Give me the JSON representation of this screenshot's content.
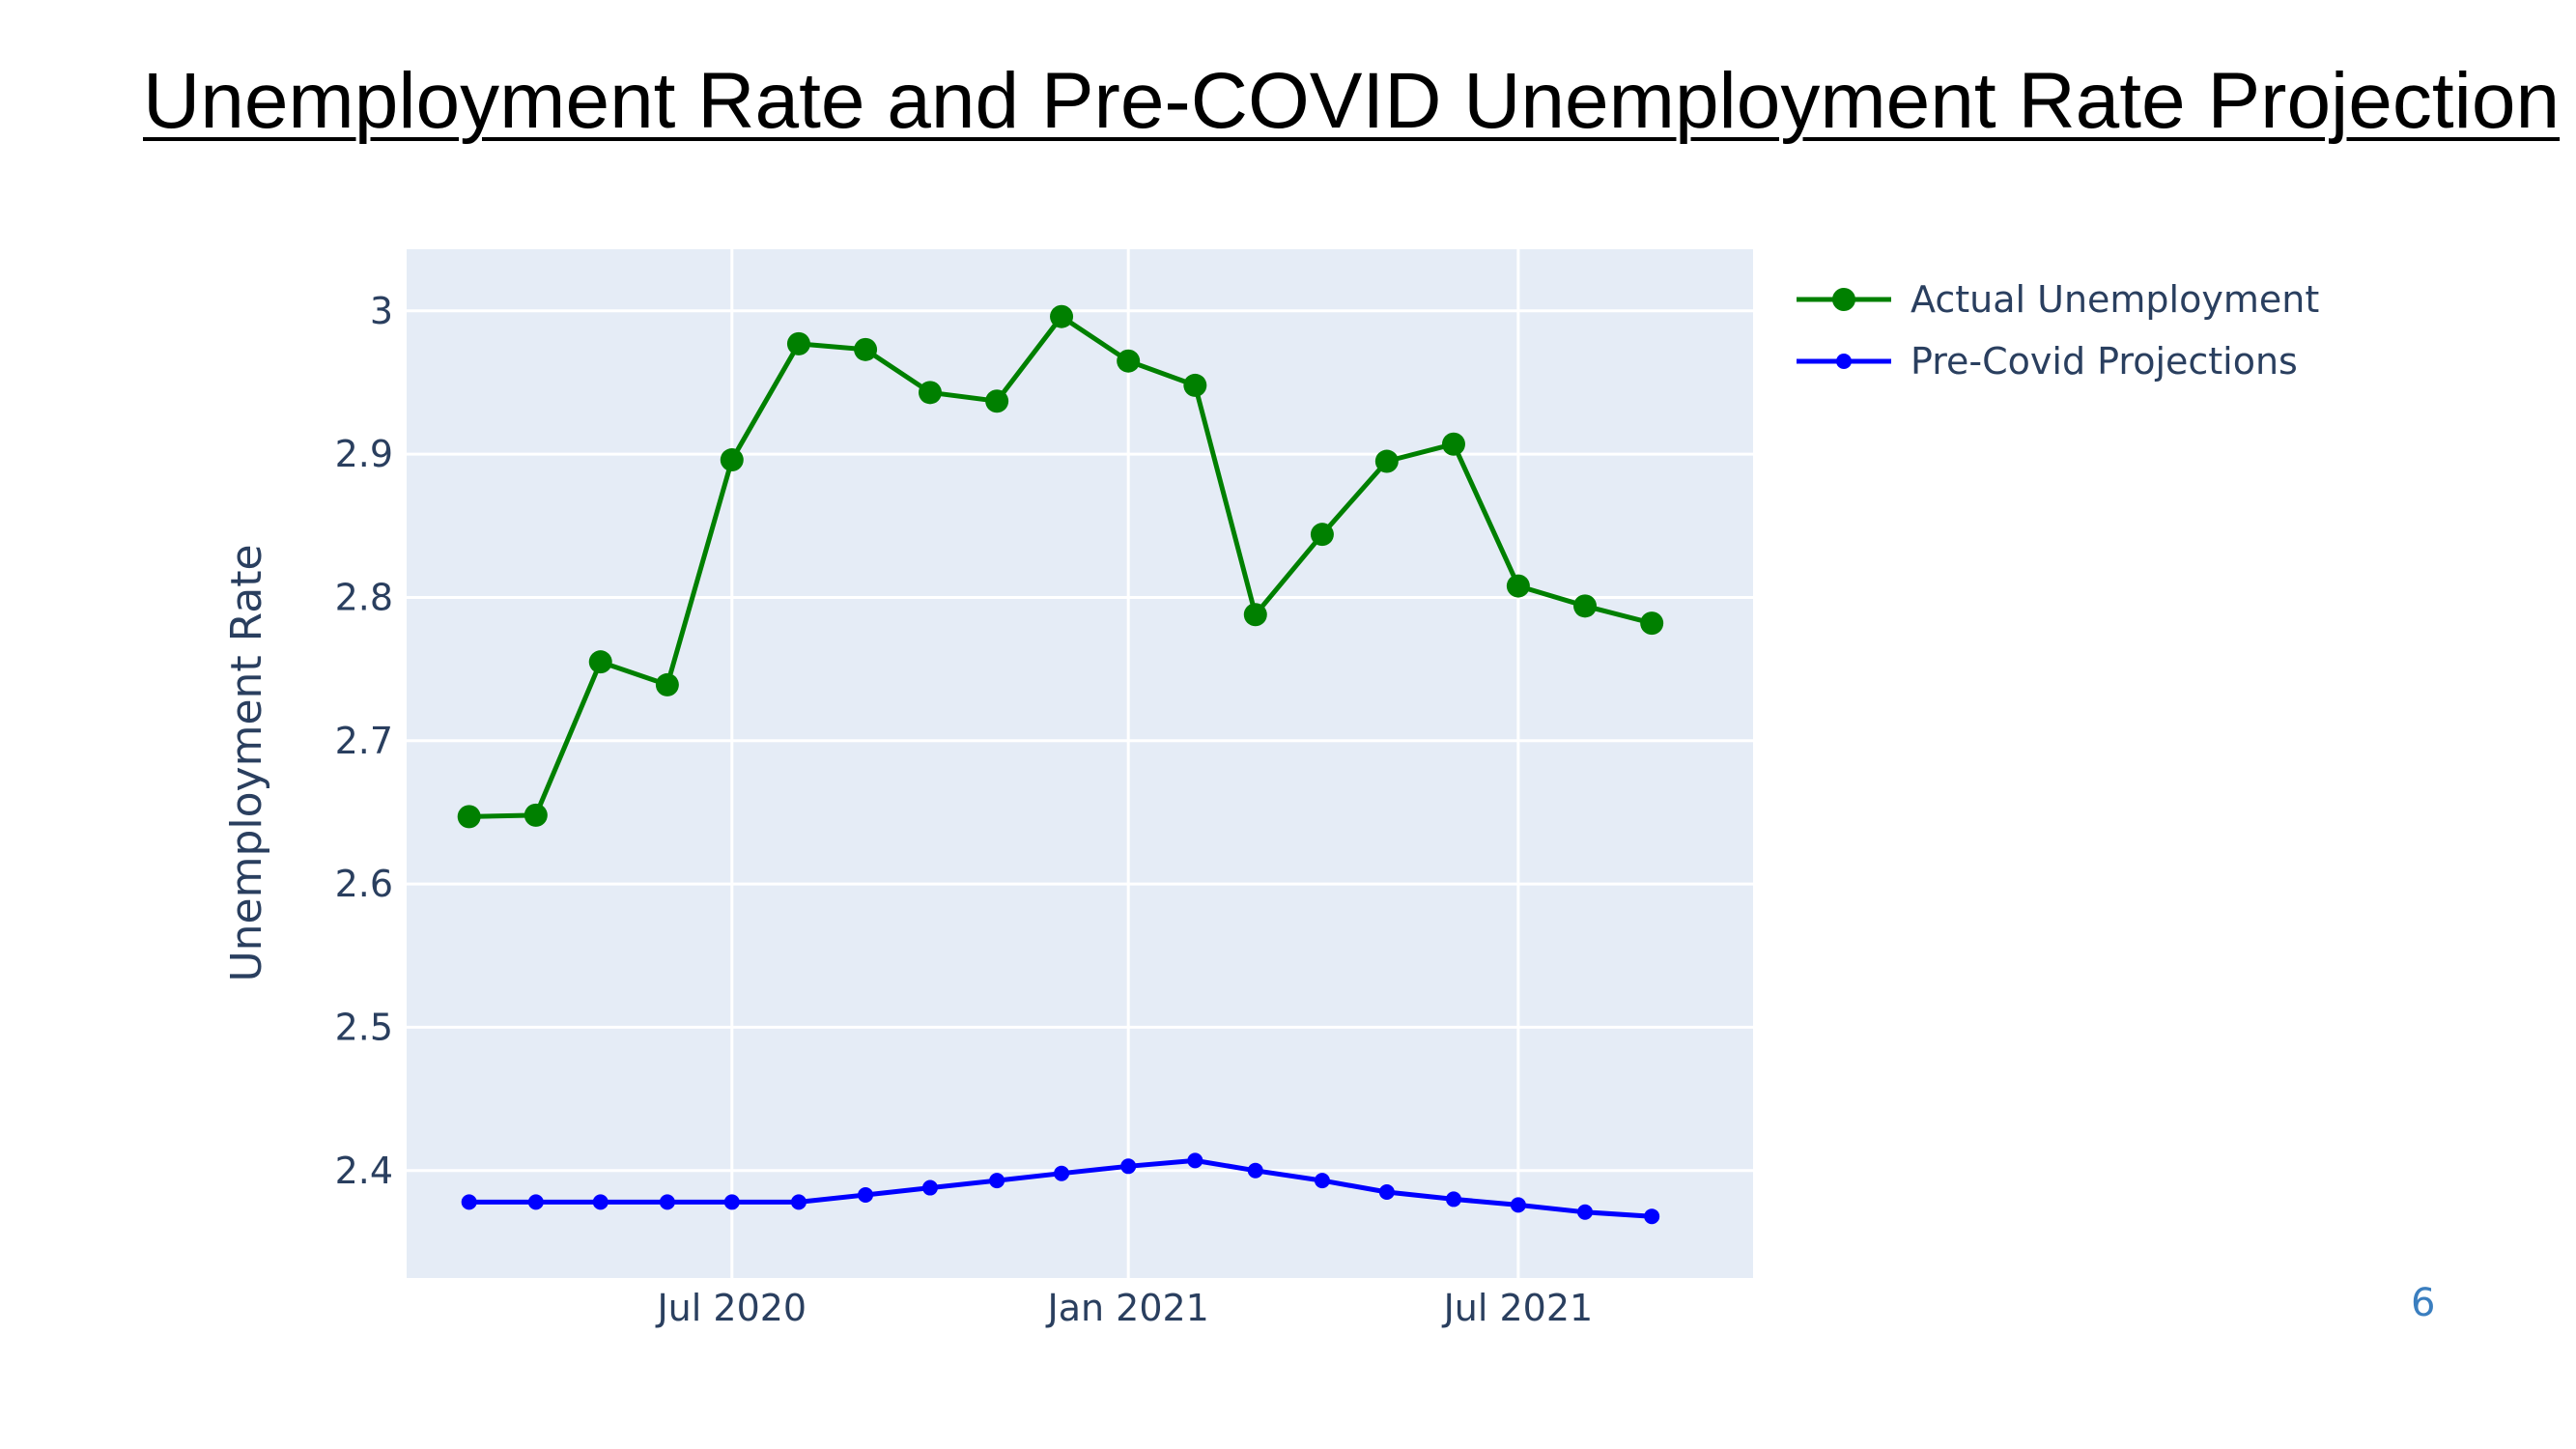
{
  "title": "Unemployment Rate and Pre-COVID Unemployment Rate Projection",
  "page_number": "6",
  "chart_data": {
    "type": "line",
    "title": "",
    "xlabel": "",
    "ylabel": "Unemployment Rate",
    "x": [
      "2020-03",
      "2020-04",
      "2020-05",
      "2020-06",
      "2020-07",
      "2020-08",
      "2020-09",
      "2020-10",
      "2020-11",
      "2020-12",
      "2021-01",
      "2021-02",
      "2021-03",
      "2021-04",
      "2021-05",
      "2021-06",
      "2021-07",
      "2021-08",
      "2021-09"
    ],
    "x_tick_labels": [
      {
        "value": "2020-07",
        "label": "Jul 2020"
      },
      {
        "value": "2021-01",
        "label": "Jan 2021"
      },
      {
        "value": "2021-07",
        "label": "Jul 2021"
      }
    ],
    "y_ticks": [
      2.4,
      2.5,
      2.6,
      2.7,
      2.8,
      2.9,
      3
    ],
    "y_tick_labels": [
      "2.4",
      "2.5",
      "2.6",
      "2.7",
      "2.8",
      "2.9",
      "3"
    ],
    "xlim": [
      "2020-02-01",
      "2021-10-18"
    ],
    "ylim": [
      2.325,
      3.043
    ],
    "grid": true,
    "legend_position": "right",
    "plot_background": "#e5ecf6",
    "series": [
      {
        "name": "Actual Unemployment",
        "color": "#008000",
        "marker": "large-circle",
        "values": [
          2.647,
          2.648,
          2.755,
          2.739,
          2.896,
          2.977,
          2.973,
          2.943,
          2.937,
          2.996,
          2.965,
          2.948,
          2.788,
          2.844,
          2.895,
          2.907,
          2.808,
          2.794,
          2.782
        ]
      },
      {
        "name": "Pre-Covid Projections",
        "color": "#0000ff",
        "marker": "small-circle",
        "values": [
          2.378,
          2.378,
          2.378,
          2.378,
          2.378,
          2.378,
          2.383,
          2.388,
          2.393,
          2.398,
          2.403,
          2.407,
          2.4,
          2.393,
          2.385,
          2.38,
          2.376,
          2.371,
          2.368
        ]
      }
    ]
  }
}
